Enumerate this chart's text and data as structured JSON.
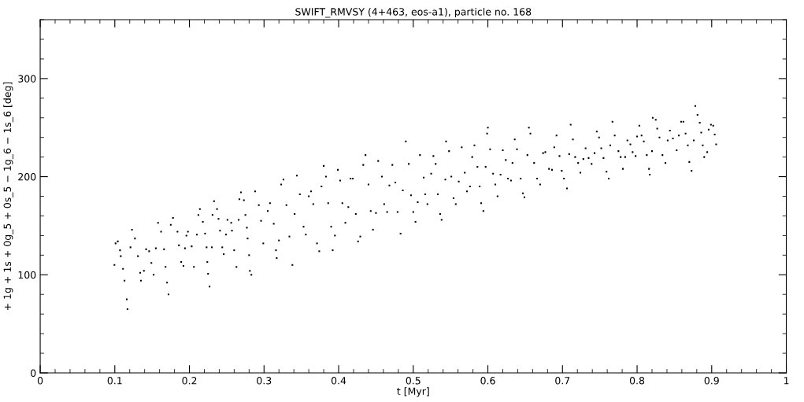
{
  "chart_data": {
    "type": "scatter",
    "title": "SWIFT_RMVSY (4+463, eos-a1), particle no. 168",
    "xlabel": "t [Myr]",
    "ylabel": "+ 1g + 1s + 0g_5 + 0s_5 − 1g_6 − 1s_6 [deg]",
    "xlim": [
      0,
      1
    ],
    "ylim": [
      0,
      360
    ],
    "xticks": [
      0,
      0.1,
      0.2,
      0.3,
      0.4,
      0.5,
      0.6,
      0.7,
      0.8,
      0.9,
      1
    ],
    "yticks": [
      0,
      100,
      200,
      300
    ],
    "grid": false,
    "marker": "square",
    "series": [
      {
        "color": "#000000",
        "x": [
          0.0995,
          0.101,
          0.104,
          0.107,
          0.108,
          0.111,
          0.113,
          0.116,
          0.117,
          0.121,
          0.123,
          0.127,
          0.131,
          0.134,
          0.135,
          0.139,
          0.142,
          0.146,
          0.149,
          0.152,
          0.155,
          0.158,
          0.162,
          0.166,
          0.168,
          0.17,
          0.172,
          0.175,
          0.178,
          0.184,
          0.186,
          0.189,
          0.192,
          0.194,
          0.196,
          0.198,
          0.203,
          0.206,
          0.21,
          0.212,
          0.214,
          0.218,
          0.221,
          0.223,
          0.224,
          0.225,
          0.227,
          0.23,
          0.231,
          0.233,
          0.237,
          0.239,
          0.241,
          0.244,
          0.246,
          0.249,
          0.251,
          0.256,
          0.257,
          0.26,
          0.263,
          0.266,
          0.267,
          0.269,
          0.273,
          0.275,
          0.277,
          0.278,
          0.28,
          0.281,
          0.283,
          0.288,
          0.293,
          0.296,
          0.299,
          0.305,
          0.308,
          0.313,
          0.316,
          0.317,
          0.32,
          0.323,
          0.326,
          0.33,
          0.334,
          0.338,
          0.341,
          0.344,
          0.348,
          0.353,
          0.356,
          0.36,
          0.363,
          0.366,
          0.371,
          0.374,
          0.377,
          0.38,
          0.383,
          0.386,
          0.39,
          0.392,
          0.395,
          0.399,
          0.402,
          0.405,
          0.409,
          0.413,
          0.416,
          0.419,
          0.423,
          0.426,
          0.429,
          0.433,
          0.436,
          0.44,
          0.443,
          0.446,
          0.45,
          0.453,
          0.458,
          0.461,
          0.465,
          0.468,
          0.472,
          0.476,
          0.479,
          0.483,
          0.486,
          0.49,
          0.494,
          0.497,
          0.5,
          0.503,
          0.506,
          0.509,
          0.514,
          0.516,
          0.519,
          0.524,
          0.527,
          0.53,
          0.533,
          0.536,
          0.538,
          0.543,
          0.544,
          0.548,
          0.551,
          0.554,
          0.557,
          0.561,
          0.565,
          0.569,
          0.572,
          0.576,
          0.579,
          0.582,
          0.586,
          0.589,
          0.591,
          0.594,
          0.597,
          0.599,
          0.6,
          0.603,
          0.607,
          0.61,
          0.613,
          0.617,
          0.62,
          0.624,
          0.627,
          0.631,
          0.633,
          0.636,
          0.639,
          0.644,
          0.647,
          0.649,
          0.653,
          0.655,
          0.657,
          0.662,
          0.666,
          0.67,
          0.674,
          0.677,
          0.682,
          0.686,
          0.689,
          0.692,
          0.696,
          0.699,
          0.702,
          0.706,
          0.709,
          0.711,
          0.714,
          0.717,
          0.721,
          0.724,
          0.728,
          0.731,
          0.735,
          0.739,
          0.743,
          0.746,
          0.749,
          0.752,
          0.755,
          0.759,
          0.762,
          0.764,
          0.767,
          0.77,
          0.775,
          0.778,
          0.781,
          0.784,
          0.787,
          0.791,
          0.794,
          0.798,
          0.8,
          0.803,
          0.806,
          0.809,
          0.813,
          0.816,
          0.817,
          0.82,
          0.821,
          0.825,
          0.827,
          0.83,
          0.834,
          0.838,
          0.841,
          0.844,
          0.848,
          0.853,
          0.856,
          0.859,
          0.862,
          0.865,
          0.868,
          0.87,
          0.873,
          0.876,
          0.878,
          0.881,
          0.884,
          0.886,
          0.888,
          0.89,
          0.894,
          0.896,
          0.899,
          0.902,
          0.904,
          0.906
        ],
        "values": [
          110,
          132,
          134,
          125,
          119,
          106,
          94,
          75,
          65,
          128,
          146,
          137,
          119,
          102,
          94,
          104,
          126,
          124,
          112,
          100,
          127,
          153,
          144,
          126,
          108,
          92,
          80,
          151,
          158,
          144,
          130,
          113,
          109,
          127,
          140,
          144,
          129,
          108,
          141,
          161,
          167,
          154,
          142,
          128,
          113,
          101,
          88,
          128,
          161,
          175,
          167,
          157,
          145,
          128,
          121,
          141,
          156,
          153,
          145,
          125,
          108,
          156,
          177,
          184,
          176,
          161,
          148,
          137,
          120,
          104,
          100,
          185,
          171,
          155,
          132,
          165,
          173,
          152,
          125,
          117,
          135,
          192,
          197,
          171,
          139,
          110,
          162,
          201,
          182,
          149,
          141,
          180,
          185,
          172,
          132,
          124,
          190,
          211,
          200,
          173,
          149,
          125,
          140,
          207,
          196,
          173,
          153,
          169,
          198,
          198,
          162,
          134,
          139,
          212,
          222,
          192,
          165,
          146,
          163,
          216,
          200,
          172,
          164,
          191,
          212,
          194,
          164,
          142,
          186,
          236,
          213,
          181,
          164,
          154,
          174,
          222,
          199,
          182,
          172,
          203,
          221,
          213,
          182,
          162,
          156,
          197,
          236,
          226,
          200,
          178,
          172,
          195,
          230,
          204,
          185,
          190,
          220,
          232,
          210,
          190,
          173,
          165,
          210,
          244,
          250,
          228,
          203,
          192,
          180,
          202,
          227,
          217,
          198,
          196,
          214,
          238,
          228,
          198,
          183,
          179,
          222,
          250,
          244,
          214,
          198,
          192,
          224,
          225,
          208,
          207,
          230,
          242,
          221,
          206,
          198,
          188,
          223,
          253,
          238,
          220,
          214,
          204,
          218,
          229,
          219,
          213,
          224,
          246,
          240,
          229,
          219,
          205,
          198,
          232,
          256,
          242,
          226,
          220,
          208,
          220,
          237,
          233,
          225,
          221,
          241,
          252,
          242,
          236,
          222,
          208,
          202,
          226,
          260,
          258,
          249,
          240,
          222,
          214,
          237,
          247,
          239,
          227,
          242,
          256,
          256,
          244,
          232,
          215,
          206,
          237,
          272,
          263,
          255,
          245,
          232,
          220,
          225,
          248,
          253,
          252,
          243,
          233
        ]
      }
    ]
  }
}
